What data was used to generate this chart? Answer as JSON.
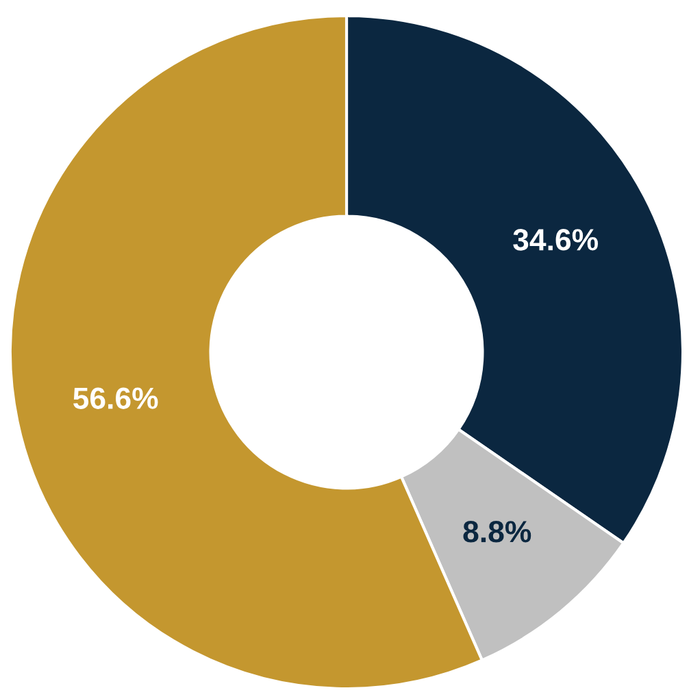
{
  "chart_data": {
    "type": "donut",
    "categories": [
      null,
      null,
      null
    ],
    "values": [
      34.6,
      8.8,
      56.6
    ],
    "colors": [
      "#0b2740",
      "#c0c0c0",
      "#c4972f"
    ],
    "value_labels": [
      "34.6%",
      "8.8%",
      "56.6%"
    ],
    "legend": false
  }
}
